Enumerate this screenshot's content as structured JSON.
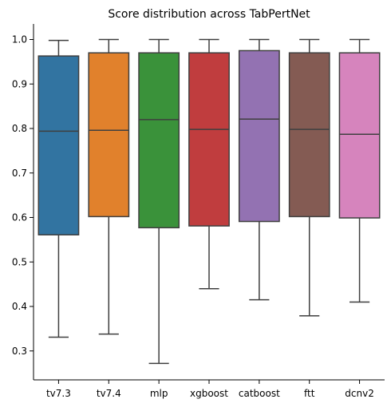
{
  "chart_data": {
    "type": "boxplot",
    "title": "Score distribution across TabPertNet",
    "xlabel": "",
    "ylabel": "",
    "ylim": [
      0.235,
      1.035
    ],
    "yticks": [
      0.3,
      0.4,
      0.5,
      0.6,
      0.7,
      0.8,
      0.9,
      1.0
    ],
    "ytick_labels": [
      "0.3",
      "0.4",
      "0.5",
      "0.6",
      "0.7",
      "0.8",
      "0.9",
      "1.0"
    ],
    "grid": false,
    "categories": [
      "tv7.3",
      "tv7.4",
      "mlp",
      "xgboost",
      "catboost",
      "ftt",
      "dcnv2"
    ],
    "boxes": [
      {
        "label": "tv7.3",
        "whisker_low": 0.331,
        "q1": 0.561,
        "median": 0.794,
        "q3": 0.963,
        "whisker_high": 0.998,
        "color": "#3274a1"
      },
      {
        "label": "tv7.4",
        "whisker_low": 0.338,
        "q1": 0.602,
        "median": 0.796,
        "q3": 0.97,
        "whisker_high": 1.0,
        "color": "#e1812c"
      },
      {
        "label": "mlp",
        "whisker_low": 0.272,
        "q1": 0.577,
        "median": 0.82,
        "q3": 0.97,
        "whisker_high": 1.0,
        "color": "#3a923a"
      },
      {
        "label": "xgboost",
        "whisker_low": 0.44,
        "q1": 0.581,
        "median": 0.798,
        "q3": 0.97,
        "whisker_high": 1.0,
        "color": "#c03d3e"
      },
      {
        "label": "catboost",
        "whisker_low": 0.415,
        "q1": 0.591,
        "median": 0.821,
        "q3": 0.975,
        "whisker_high": 1.0,
        "color": "#9372b2"
      },
      {
        "label": "ftt",
        "whisker_low": 0.379,
        "q1": 0.602,
        "median": 0.798,
        "q3": 0.97,
        "whisker_high": 1.0,
        "color": "#845b53"
      },
      {
        "label": "dcnv2",
        "whisker_low": 0.41,
        "q1": 0.599,
        "median": 0.787,
        "q3": 0.97,
        "whisker_high": 1.0,
        "color": "#d684bd"
      }
    ]
  }
}
